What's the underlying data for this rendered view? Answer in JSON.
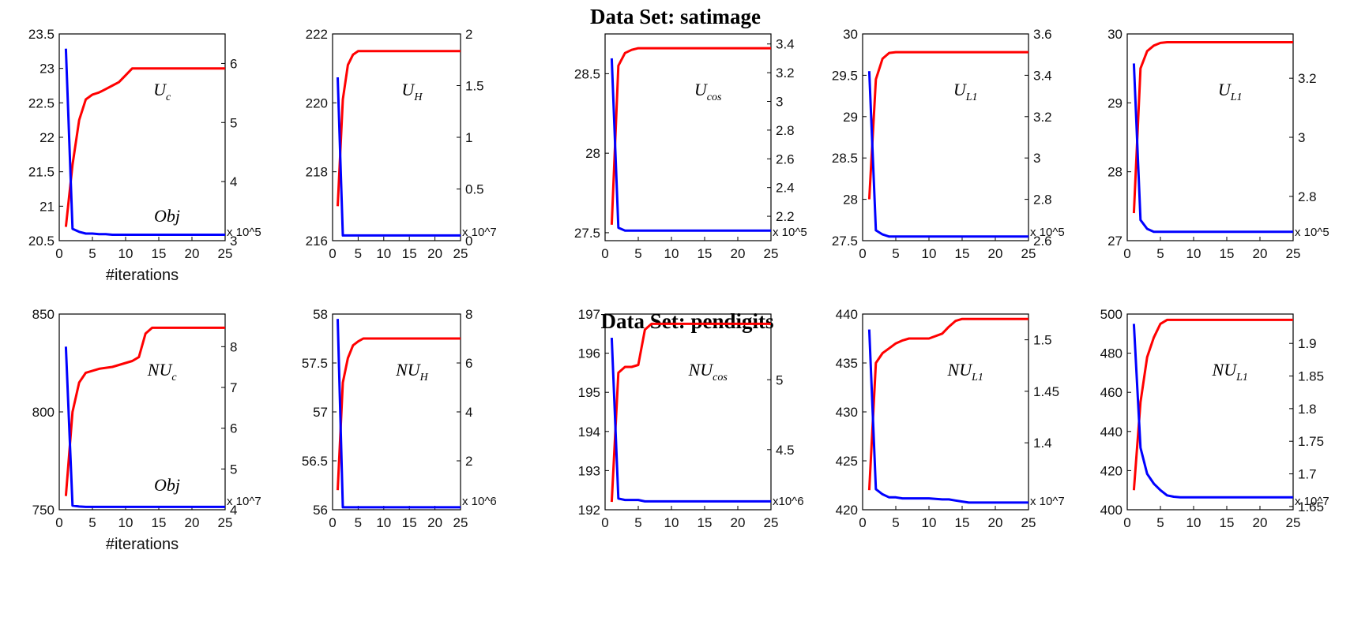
{
  "headings": [
    "Data Set: satimage",
    "Data Set: pendigits"
  ],
  "colors": {
    "left_series": "#ff0000",
    "right_series": "#0000ff"
  },
  "chart_data": [
    {
      "type": "line",
      "title": "",
      "label_main": "U",
      "label_sub": "c",
      "obj_label": "Obj",
      "xlabel": "#iterations",
      "xlim": [
        0,
        25
      ],
      "xticks": [
        "0",
        "5",
        "10",
        "15",
        "20",
        "25"
      ],
      "ylim": [
        20.5,
        23.5
      ],
      "yticks": [
        "20.5",
        "21",
        "21.5",
        "22",
        "22.5",
        "23",
        "23.5"
      ],
      "y2lim": [
        3,
        6.5
      ],
      "y2ticks": [
        "3",
        "4",
        "5",
        "6"
      ],
      "y2_multiplier": "x 10^5",
      "x": [
        1,
        2,
        3,
        4,
        5,
        6,
        7,
        8,
        9,
        10,
        11,
        12,
        13,
        15,
        20,
        25
      ],
      "series": [
        {
          "axis": "left",
          "values": [
            20.7,
            21.6,
            22.25,
            22.55,
            22.62,
            22.65,
            22.7,
            22.75,
            22.8,
            22.9,
            23.0,
            23.0,
            23.0,
            23.0,
            23.0,
            23.0
          ]
        },
        {
          "axis": "right",
          "values": [
            6.25,
            3.2,
            3.15,
            3.12,
            3.12,
            3.11,
            3.11,
            3.1,
            3.1,
            3.1,
            3.1,
            3.1,
            3.1,
            3.1,
            3.1,
            3.1
          ]
        }
      ]
    },
    {
      "type": "line",
      "title": "",
      "label_main": "U",
      "label_sub": "H",
      "obj_label": "",
      "xlabel": "",
      "xlim": [
        0,
        25
      ],
      "xticks": [
        "0",
        "5",
        "10",
        "15",
        "20",
        "25"
      ],
      "ylim": [
        216,
        222
      ],
      "yticks": [
        "216",
        "218",
        "220",
        "222"
      ],
      "y2lim": [
        0,
        2
      ],
      "y2ticks": [
        "0",
        "0.5",
        "1",
        "1.5",
        "2"
      ],
      "y2_multiplier": "x 10^7",
      "x": [
        1,
        2,
        3,
        4,
        5,
        6,
        8,
        10,
        15,
        20,
        25
      ],
      "series": [
        {
          "axis": "left",
          "values": [
            217.0,
            220.1,
            221.1,
            221.4,
            221.5,
            221.5,
            221.5,
            221.5,
            221.5,
            221.5,
            221.5
          ]
        },
        {
          "axis": "right",
          "values": [
            1.58,
            0.05,
            0.05,
            0.05,
            0.05,
            0.05,
            0.05,
            0.05,
            0.05,
            0.05,
            0.05
          ]
        }
      ]
    },
    {
      "type": "line",
      "title": "",
      "label_main": "U",
      "label_sub": "cos",
      "obj_label": "",
      "xlabel": "",
      "xlim": [
        0,
        25
      ],
      "xticks": [
        "0",
        "5",
        "10",
        "15",
        "20",
        "25"
      ],
      "ylim": [
        27.45,
        28.75
      ],
      "yticks": [
        "27.5",
        "28",
        "28.5"
      ],
      "y2lim": [
        2.03,
        3.47
      ],
      "y2ticks": [
        "2.2",
        "2.4",
        "2.6",
        "2.8",
        "3",
        "3.2",
        "3.4"
      ],
      "y2_multiplier": "x 10^5",
      "x": [
        1,
        2,
        3,
        4,
        5,
        6,
        8,
        10,
        15,
        20,
        25
      ],
      "series": [
        {
          "axis": "left",
          "values": [
            27.55,
            28.55,
            28.63,
            28.65,
            28.66,
            28.66,
            28.66,
            28.66,
            28.66,
            28.66,
            28.66
          ]
        },
        {
          "axis": "right",
          "values": [
            3.3,
            2.12,
            2.1,
            2.1,
            2.1,
            2.1,
            2.1,
            2.1,
            2.1,
            2.1,
            2.1
          ]
        }
      ]
    },
    {
      "type": "line",
      "title": "",
      "label_main": "U",
      "label_sub": "L1",
      "obj_label": "",
      "xlabel": "",
      "xlim": [
        0,
        25
      ],
      "xticks": [
        "0",
        "5",
        "10",
        "15",
        "20",
        "25"
      ],
      "ylim": [
        27.5,
        30
      ],
      "yticks": [
        "27.5",
        "28",
        "28.5",
        "29",
        "29.5",
        "30"
      ],
      "y2lim": [
        2.6,
        3.6
      ],
      "y2ticks": [
        "2.6",
        "2.8",
        "3",
        "3.2",
        "3.4",
        "3.6"
      ],
      "y2_multiplier": "x 10^5",
      "x": [
        1,
        2,
        3,
        4,
        5,
        6,
        8,
        10,
        15,
        20,
        25
      ],
      "series": [
        {
          "axis": "left",
          "values": [
            28.0,
            29.45,
            29.7,
            29.77,
            29.78,
            29.78,
            29.78,
            29.78,
            29.78,
            29.78,
            29.78
          ]
        },
        {
          "axis": "right",
          "values": [
            3.42,
            2.65,
            2.63,
            2.62,
            2.62,
            2.62,
            2.62,
            2.62,
            2.62,
            2.62,
            2.62
          ]
        }
      ]
    },
    {
      "type": "line",
      "title": "",
      "label_main": "U",
      "label_sub": "L1",
      "obj_label": "",
      "xlabel": "",
      "xlim": [
        0,
        25
      ],
      "xticks": [
        "0",
        "5",
        "10",
        "15",
        "20",
        "25"
      ],
      "ylim": [
        27,
        30
      ],
      "yticks": [
        "27",
        "28",
        "29",
        "30"
      ],
      "y2lim": [
        2.65,
        3.35
      ],
      "y2ticks": [
        "2.8",
        "3",
        "3.2"
      ],
      "y2_multiplier": "x 10^5",
      "x": [
        1,
        2,
        3,
        4,
        5,
        6,
        8,
        10,
        15,
        20,
        25
      ],
      "series": [
        {
          "axis": "left",
          "values": [
            27.4,
            29.5,
            29.75,
            29.83,
            29.87,
            29.88,
            29.88,
            29.88,
            29.88,
            29.88,
            29.88
          ]
        },
        {
          "axis": "right",
          "values": [
            3.25,
            2.72,
            2.69,
            2.68,
            2.68,
            2.68,
            2.68,
            2.68,
            2.68,
            2.68,
            2.68
          ]
        }
      ]
    },
    {
      "type": "line",
      "title": "",
      "label_main": "NU",
      "label_sub": "c",
      "obj_label": "Obj",
      "xlabel": "#iterations",
      "xlim": [
        0,
        25
      ],
      "xticks": [
        "0",
        "5",
        "10",
        "15",
        "20",
        "25"
      ],
      "ylim": [
        750,
        850
      ],
      "yticks": [
        "750",
        "800",
        "850"
      ],
      "y2lim": [
        4,
        8.8
      ],
      "y2ticks": [
        "4",
        "5",
        "6",
        "7",
        "8"
      ],
      "y2_multiplier": "x 10^7",
      "x": [
        1,
        2,
        3,
        4,
        5,
        6,
        8,
        10,
        11,
        12,
        13,
        14,
        15,
        20,
        25
      ],
      "series": [
        {
          "axis": "left",
          "values": [
            757,
            800,
            815,
            820,
            821,
            822,
            823,
            825,
            826,
            828,
            840,
            843,
            843,
            843,
            843
          ]
        },
        {
          "axis": "right",
          "values": [
            8.0,
            4.1,
            4.08,
            4.07,
            4.07,
            4.07,
            4.07,
            4.07,
            4.07,
            4.07,
            4.07,
            4.07,
            4.07,
            4.07,
            4.07
          ]
        }
      ]
    },
    {
      "type": "line",
      "title": "",
      "label_main": "NU",
      "label_sub": "H",
      "obj_label": "",
      "xlabel": "",
      "xlim": [
        0,
        25
      ],
      "xticks": [
        "0",
        "5",
        "10",
        "15",
        "20",
        "25"
      ],
      "ylim": [
        56,
        58
      ],
      "yticks": [
        "56",
        "56.5",
        "57",
        "57.5",
        "58"
      ],
      "y2lim": [
        0,
        8
      ],
      "y2ticks": [
        "2",
        "4",
        "6",
        "8"
      ],
      "y2_multiplier": "x 10^6",
      "x": [
        1,
        2,
        3,
        4,
        5,
        6,
        8,
        10,
        15,
        20,
        25
      ],
      "series": [
        {
          "axis": "left",
          "values": [
            56.2,
            57.3,
            57.55,
            57.68,
            57.72,
            57.75,
            57.75,
            57.75,
            57.75,
            57.75,
            57.75
          ]
        },
        {
          "axis": "right",
          "values": [
            7.8,
            0.1,
            0.1,
            0.1,
            0.1,
            0.1,
            0.1,
            0.1,
            0.1,
            0.1,
            0.1
          ]
        }
      ]
    },
    {
      "type": "line",
      "title": "",
      "label_main": "NU",
      "label_sub": "cos",
      "obj_label": "",
      "xlabel": "",
      "xlim": [
        0,
        25
      ],
      "xticks": [
        "0",
        "5",
        "10",
        "15",
        "20",
        "25"
      ],
      "ylim": [
        192,
        197
      ],
      "yticks": [
        "192",
        "193",
        "194",
        "195",
        "196",
        "197"
      ],
      "y2lim": [
        4.07,
        5.47
      ],
      "y2ticks": [
        "4.5",
        "5"
      ],
      "y2_multiplier": "x10^6",
      "x": [
        1,
        2,
        3,
        4,
        5,
        6,
        7,
        8,
        10,
        15,
        20,
        25
      ],
      "series": [
        {
          "axis": "left",
          "values": [
            192.2,
            195.5,
            195.65,
            195.65,
            195.7,
            196.6,
            196.75,
            196.75,
            196.75,
            196.75,
            196.75,
            196.75
          ]
        },
        {
          "axis": "right",
          "values": [
            5.3,
            4.15,
            4.14,
            4.14,
            4.14,
            4.13,
            4.13,
            4.13,
            4.13,
            4.13,
            4.13,
            4.13
          ]
        }
      ]
    },
    {
      "type": "line",
      "title": "",
      "label_main": "NU",
      "label_sub": "L1",
      "obj_label": "",
      "xlabel": "",
      "xlim": [
        0,
        25
      ],
      "xticks": [
        "0",
        "5",
        "10",
        "15",
        "20",
        "25"
      ],
      "ylim": [
        420,
        440
      ],
      "yticks": [
        "420",
        "425",
        "430",
        "435",
        "440"
      ],
      "y2lim": [
        1.335,
        1.525
      ],
      "y2ticks": [
        "1.4",
        "1.45",
        "1.5"
      ],
      "y2_multiplier": "x 10^7",
      "x": [
        1,
        2,
        3,
        4,
        5,
        6,
        7,
        8,
        10,
        12,
        13,
        14,
        15,
        16,
        20,
        25
      ],
      "series": [
        {
          "axis": "left",
          "values": [
            422,
            435,
            436,
            436.5,
            437,
            437.3,
            437.5,
            437.5,
            437.5,
            438,
            438.7,
            439.3,
            439.5,
            439.5,
            439.5,
            439.5
          ]
        },
        {
          "axis": "right",
          "values": [
            1.51,
            1.355,
            1.35,
            1.347,
            1.347,
            1.346,
            1.346,
            1.346,
            1.346,
            1.345,
            1.345,
            1.344,
            1.343,
            1.342,
            1.342,
            1.342
          ]
        }
      ]
    },
    {
      "type": "line",
      "title": "",
      "label_main": "NU",
      "label_sub": "L1",
      "obj_label": "",
      "xlabel": "",
      "xlim": [
        0,
        25
      ],
      "xticks": [
        "0",
        "5",
        "10",
        "15",
        "20",
        "25"
      ],
      "ylim": [
        400,
        500
      ],
      "yticks": [
        "400",
        "420",
        "440",
        "460",
        "480",
        "500"
      ],
      "y2lim": [
        1.645,
        1.945
      ],
      "y2ticks": [
        "1.65",
        "1.7",
        "1.75",
        "1.8",
        "1.85",
        "1.9"
      ],
      "y2_multiplier": "x 10^7",
      "x": [
        1,
        2,
        3,
        4,
        5,
        6,
        7,
        8,
        10,
        15,
        20,
        25
      ],
      "series": [
        {
          "axis": "left",
          "values": [
            410,
            455,
            478,
            488,
            495,
            497,
            497,
            497,
            497,
            497,
            497,
            497
          ]
        },
        {
          "axis": "right",
          "values": [
            1.93,
            1.74,
            1.7,
            1.685,
            1.675,
            1.667,
            1.665,
            1.664,
            1.664,
            1.664,
            1.664,
            1.664
          ]
        }
      ]
    }
  ]
}
